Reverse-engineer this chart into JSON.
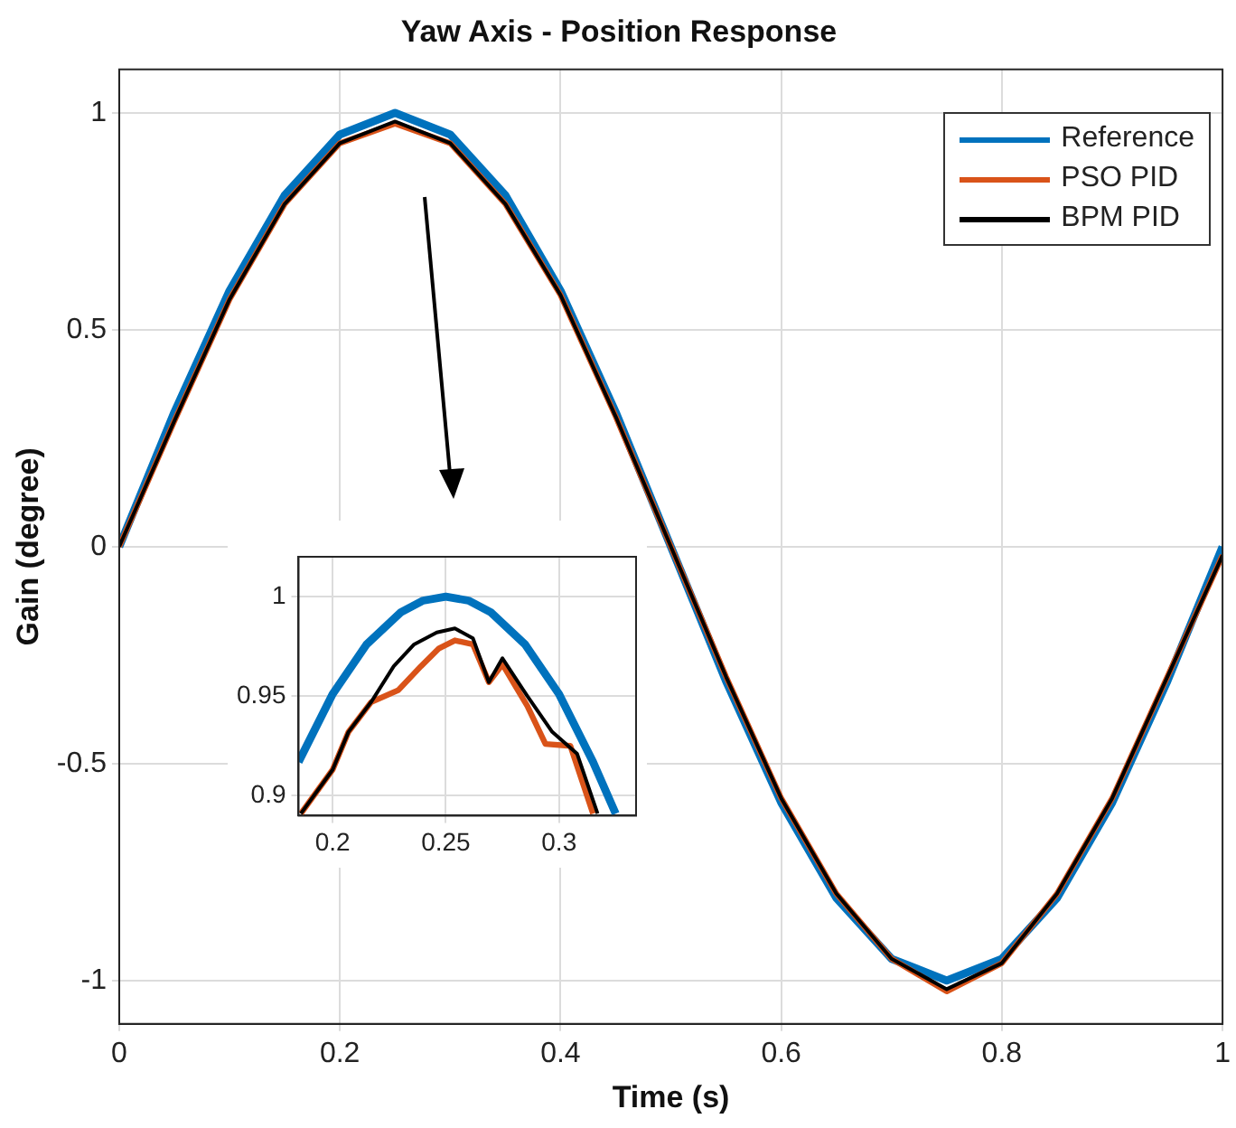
{
  "chart_data": [
    {
      "type": "line",
      "title": "Yaw Axis - Position Response",
      "xlabel": "Time (s)",
      "ylabel": "Gain (degree)",
      "x": [
        0,
        0.05,
        0.1,
        0.15,
        0.2,
        0.25,
        0.3,
        0.35,
        0.4,
        0.45,
        0.5,
        0.55,
        0.6,
        0.65,
        0.7,
        0.75,
        0.8,
        0.85,
        0.9,
        0.95,
        1
      ],
      "series": [
        {
          "name": "Reference",
          "color": "#0072bd",
          "values": [
            0,
            0.31,
            0.59,
            0.81,
            0.95,
            1,
            0.95,
            0.81,
            0.59,
            0.31,
            0,
            -0.31,
            -0.59,
            -0.81,
            -0.95,
            -1,
            -0.95,
            -0.81,
            -0.59,
            -0.31,
            0
          ]
        },
        {
          "name": "PSO PID",
          "color": "#d95319",
          "values": [
            0,
            0.29,
            0.57,
            0.79,
            0.93,
            0.975,
            0.93,
            0.79,
            0.58,
            0.3,
            0,
            -0.3,
            -0.58,
            -0.8,
            -0.95,
            -1.025,
            -0.96,
            -0.8,
            -0.58,
            -0.3,
            -0.02
          ]
        },
        {
          "name": "BPM PID",
          "color": "#000000",
          "values": [
            0,
            0.29,
            0.57,
            0.79,
            0.93,
            0.98,
            0.93,
            0.79,
            0.58,
            0.3,
            0,
            -0.3,
            -0.58,
            -0.8,
            -0.95,
            -1.02,
            -0.96,
            -0.8,
            -0.58,
            -0.3,
            -0.02
          ]
        }
      ],
      "xlim": [
        0,
        1
      ],
      "xticks": [
        0,
        0.2,
        0.4,
        0.6,
        0.8,
        1
      ],
      "ylim": [
        -1.1,
        1.1
      ],
      "yticks": [
        -1,
        -0.5,
        0,
        0.5,
        1
      ],
      "grid": true,
      "legend": "top right",
      "marker": "none",
      "line_style": "solid"
    },
    {
      "type": "line",
      "series": [
        {
          "color": "#0072bd",
          "x": [
            0.185,
            0.2,
            0.215,
            0.23,
            0.24,
            0.25,
            0.26,
            0.27,
            0.285,
            0.3,
            0.315,
            0.325
          ],
          "values": [
            0.917,
            0.951,
            0.976,
            0.992,
            0.998,
            1,
            0.998,
            0.992,
            0.976,
            0.951,
            0.917,
            0.891
          ]
        },
        {
          "color": "#d95319",
          "x": [
            0.186,
            0.2,
            0.207,
            0.217,
            0.229,
            0.239,
            0.247,
            0.254,
            0.262,
            0.269,
            0.275,
            0.286,
            0.294,
            0.305,
            0.315
          ],
          "values": [
            0.891,
            0.913,
            0.932,
            0.947,
            0.953,
            0.965,
            0.974,
            0.978,
            0.976,
            0.957,
            0.966,
            0.945,
            0.926,
            0.925,
            0.891
          ]
        },
        {
          "color": "#000000",
          "x": [
            0.186,
            0.2,
            0.207,
            0.217,
            0.227,
            0.236,
            0.246,
            0.254,
            0.262,
            0.269,
            0.275,
            0.286,
            0.297,
            0.308,
            0.317
          ],
          "values": [
            0.891,
            0.913,
            0.932,
            0.947,
            0.965,
            0.976,
            0.982,
            0.984,
            0.979,
            0.957,
            0.969,
            0.95,
            0.932,
            0.921,
            0.891
          ]
        }
      ],
      "xlim": [
        0.185,
        0.334
      ],
      "xticks": [
        0.2,
        0.25,
        0.3
      ],
      "ylim": [
        0.89,
        1.02
      ],
      "yticks": [
        0.9,
        0.95,
        1
      ],
      "grid": true,
      "marker": "none",
      "line_style": "solid"
    }
  ]
}
